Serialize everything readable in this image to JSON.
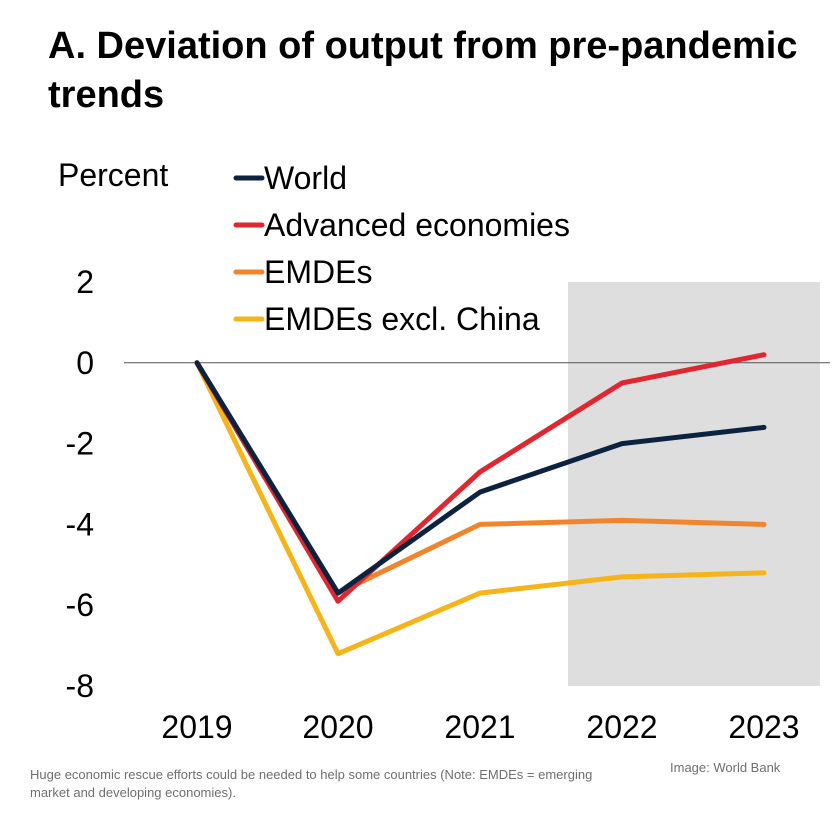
{
  "chart_data": {
    "type": "line",
    "title": "A. Deviation of output from pre-pandemic trends",
    "ylabel": "Percent",
    "xlabel": "",
    "x": [
      "2019",
      "2020",
      "2021",
      "2022",
      "2023"
    ],
    "ylim": [
      -8,
      2
    ],
    "yticks": [
      "2",
      "0",
      "-2",
      "-4",
      "-6",
      "-8"
    ],
    "forecast_shading": [
      "2022",
      "2023"
    ],
    "legend_position": "top-left",
    "series": [
      {
        "name": "World",
        "color": "#0c2340",
        "values": [
          0,
          -5.7,
          -3.2,
          -2.0,
          -1.6
        ]
      },
      {
        "name": "Advanced economies",
        "color": "#e0262f",
        "values": [
          0,
          -5.9,
          -2.7,
          -0.5,
          0.2
        ]
      },
      {
        "name": "EMDEs",
        "color": "#f0852d",
        "values": [
          0,
          -5.7,
          -4.0,
          -3.9,
          -4.0
        ]
      },
      {
        "name": "EMDEs excl. China",
        "color": "#f5b419",
        "values": [
          0,
          -7.2,
          -5.7,
          -5.3,
          -5.2
        ]
      }
    ]
  },
  "caption": "Huge economic rescue efforts could be needed to help some countries (Note: EMDEs = emerging market and developing economies).",
  "credit": "Image: World Bank"
}
